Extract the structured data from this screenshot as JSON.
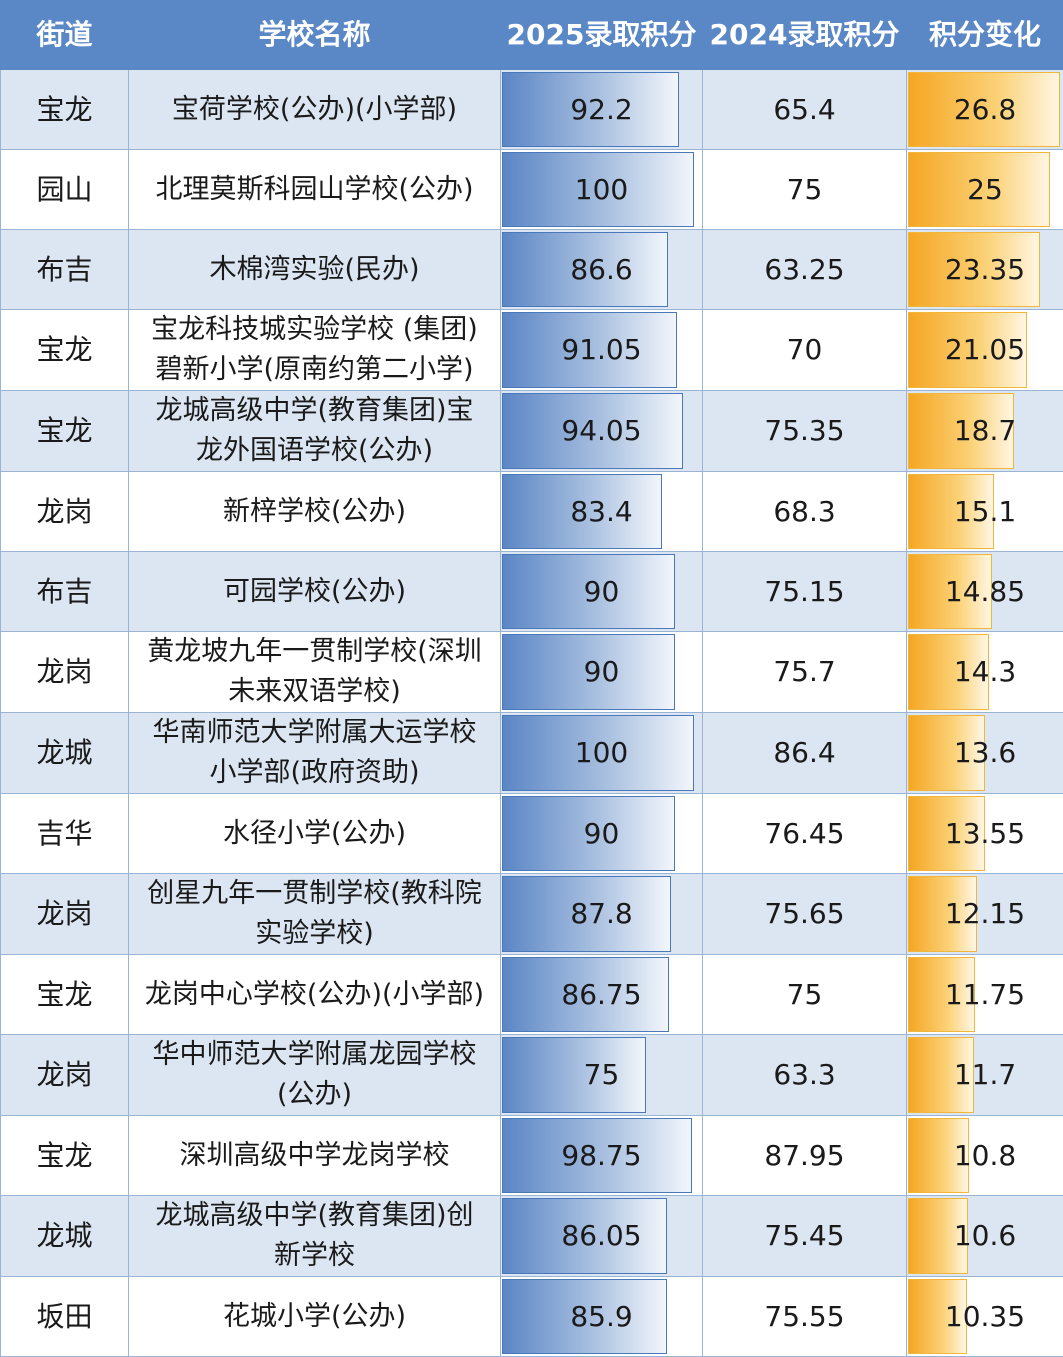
{
  "columns": [
    "街道",
    "学校名称",
    "2025录取积分",
    "2024录取积分",
    "积分变化"
  ],
  "colors": {
    "header_bg": "#5a87c6",
    "row_shade": "#dce6f2",
    "bar_2025": "#5b86c5",
    "bar_change": "#f5a623"
  },
  "rows": [
    {
      "street": "宝龙",
      "school_lines": [
        "宝荷学校(公办)(小学部)"
      ],
      "score_2025": "92.2",
      "score_2024": "65.4",
      "change": "26.8"
    },
    {
      "street": "园山",
      "school_lines": [
        "北理莫斯科园山学校(公办)"
      ],
      "score_2025": "100",
      "score_2024": "75",
      "change": "25"
    },
    {
      "street": "布吉",
      "school_lines": [
        "木棉湾实验(民办)"
      ],
      "score_2025": "86.6",
      "score_2024": "63.25",
      "change": "23.35"
    },
    {
      "street": "宝龙",
      "school_lines": [
        "宝龙科技城实验学校 (集团)",
        "碧新小学(原南约第二小学)"
      ],
      "score_2025": "91.05",
      "score_2024": "70",
      "change": "21.05"
    },
    {
      "street": "宝龙",
      "school_lines": [
        "龙城高级中学(教育集团)宝",
        "龙外国语学校(公办)"
      ],
      "score_2025": "94.05",
      "score_2024": "75.35",
      "change": "18.7"
    },
    {
      "street": "龙岗",
      "school_lines": [
        "新梓学校(公办)"
      ],
      "score_2025": "83.4",
      "score_2024": "68.3",
      "change": "15.1"
    },
    {
      "street": "布吉",
      "school_lines": [
        "可园学校(公办)"
      ],
      "score_2025": "90",
      "score_2024": "75.15",
      "change": "14.85"
    },
    {
      "street": "龙岗",
      "school_lines": [
        "黄龙坡九年一贯制学校(深圳",
        "未来双语学校)"
      ],
      "score_2025": "90",
      "score_2024": "75.7",
      "change": "14.3"
    },
    {
      "street": "龙城",
      "school_lines": [
        "华南师范大学附属大运学校",
        "小学部(政府资助)"
      ],
      "score_2025": "100",
      "score_2024": "86.4",
      "change": "13.6"
    },
    {
      "street": "吉华",
      "school_lines": [
        "水径小学(公办)"
      ],
      "score_2025": "90",
      "score_2024": "76.45",
      "change": "13.55"
    },
    {
      "street": "龙岗",
      "school_lines": [
        "创星九年一贯制学校(教科院",
        "实验学校)"
      ],
      "score_2025": "87.8",
      "score_2024": "75.65",
      "change": "12.15"
    },
    {
      "street": "宝龙",
      "school_lines": [
        "龙岗中心学校(公办)(小学部)"
      ],
      "score_2025": "86.75",
      "score_2024": "75",
      "change": "11.75"
    },
    {
      "street": "龙岗",
      "school_lines": [
        "华中师范大学附属龙园学校",
        "(公办)"
      ],
      "score_2025": "75",
      "score_2024": "63.3",
      "change": "11.7"
    },
    {
      "street": "宝龙",
      "school_lines": [
        "深圳高级中学龙岗学校"
      ],
      "score_2025": "98.75",
      "score_2024": "87.95",
      "change": "10.8"
    },
    {
      "street": "龙城",
      "school_lines": [
        "龙城高级中学(教育集团)创",
        "新学校"
      ],
      "score_2025": "86.05",
      "score_2024": "75.45",
      "change": "10.6"
    },
    {
      "street": "坂田",
      "school_lines": [
        "花城小学(公办)"
      ],
      "score_2025": "85.9",
      "score_2024": "75.55",
      "change": "10.35"
    }
  ],
  "chart_data": {
    "type": "table",
    "columns": [
      "街道",
      "学校名称",
      "2025录取积分",
      "2024录取积分",
      "积分变化"
    ],
    "data_bars": {
      "2025录取积分": "blue",
      "积分变化": "orange"
    },
    "rows": [
      [
        "宝龙",
        "宝荷学校(公办)(小学部)",
        92.2,
        65.4,
        26.8
      ],
      [
        "园山",
        "北理莫斯科园山学校(公办)",
        100,
        75,
        25
      ],
      [
        "布吉",
        "木棉湾实验(民办)",
        86.6,
        63.25,
        23.35
      ],
      [
        "宝龙",
        "宝龙科技城实验学校 (集团)碧新小学(原南约第二小学)",
        91.05,
        70,
        21.05
      ],
      [
        "宝龙",
        "龙城高级中学(教育集团)宝龙外国语学校(公办)",
        94.05,
        75.35,
        18.7
      ],
      [
        "龙岗",
        "新梓学校(公办)",
        83.4,
        68.3,
        15.1
      ],
      [
        "布吉",
        "可园学校(公办)",
        90,
        75.15,
        14.85
      ],
      [
        "龙岗",
        "黄龙坡九年一贯制学校(深圳未来双语学校)",
        90,
        75.7,
        14.3
      ],
      [
        "龙城",
        "华南师范大学附属大运学校小学部(政府资助)",
        100,
        86.4,
        13.6
      ],
      [
        "吉华",
        "水径小学(公办)",
        90,
        76.45,
        13.55
      ],
      [
        "龙岗",
        "创星九年一贯制学校(教科院实验学校)",
        87.8,
        75.65,
        12.15
      ],
      [
        "宝龙",
        "龙岗中心学校(公办)(小学部)",
        86.75,
        75,
        11.75
      ],
      [
        "龙岗",
        "华中师范大学附属龙园学校(公办)",
        75,
        63.3,
        11.7
      ],
      [
        "宝龙",
        "深圳高级中学龙岗学校",
        98.75,
        87.95,
        10.8
      ],
      [
        "龙城",
        "龙城高级中学(教育集团)创新学校",
        86.05,
        75.45,
        10.6
      ],
      [
        "坂田",
        "花城小学(公办)",
        85.9,
        75.55,
        10.35
      ]
    ]
  }
}
